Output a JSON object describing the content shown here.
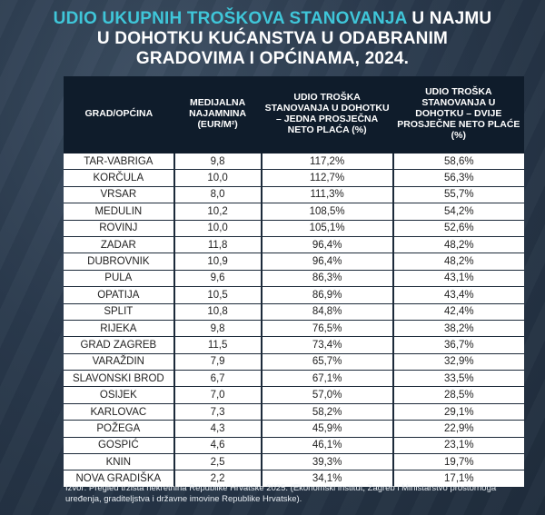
{
  "title": {
    "highlight": "UDIO UKUPNIH TROŠKOVA STANOVANJA",
    "line1_rest": " U NAJMU",
    "line2": "U DOHOTKU KUĆANSTVA U ODABRANIM",
    "line3": "GRADOVIMA I OPĆINAMA, 2024."
  },
  "table": {
    "headers": [
      "GRAD/OPĆINA",
      "MEDIJALNA NAJAMNINA (EUR/M²)",
      "UDIO TROŠKA STANOVANJA U DOHOTKU – JEDNA PROSJEČNA NETO PLAĆA (%)",
      "UDIO TROŠKA STANOVANJA U DOHOTKU – DVIJE PROSJEČNE NETO PLAĆE (%)"
    ],
    "rows": [
      [
        "TAR-VABRIGA",
        "9,8",
        "117,2%",
        "58,6%"
      ],
      [
        "KORČULA",
        "10,0",
        "112,7%",
        "56,3%"
      ],
      [
        "VRSAR",
        "8,0",
        "111,3%",
        "55,7%"
      ],
      [
        "MEDULIN",
        "10,2",
        "108,5%",
        "54,2%"
      ],
      [
        "ROVINJ",
        "10,0",
        "105,1%",
        "52,6%"
      ],
      [
        "ZADAR",
        "11,8",
        "96,4%",
        "48,2%"
      ],
      [
        "DUBROVNIK",
        "10,9",
        "96,4%",
        "48,2%"
      ],
      [
        "PULA",
        "9,6",
        "86,3%",
        "43,1%"
      ],
      [
        "OPATIJA",
        "10,5",
        "86,9%",
        "43,4%"
      ],
      [
        "SPLIT",
        "10,8",
        "84,8%",
        "42,4%"
      ],
      [
        "RIJEKA",
        "9,8",
        "76,5%",
        "38,2%"
      ],
      [
        "GRAD ZAGREB",
        "11,5",
        "73,4%",
        "36,7%"
      ],
      [
        "VARAŽDIN",
        "7,9",
        "65,7%",
        "32,9%"
      ],
      [
        "SLAVONSKI BROD",
        "6,7",
        "67,1%",
        "33,5%"
      ],
      [
        "OSIJEK",
        "7,0",
        "57,0%",
        "28,5%"
      ],
      [
        "KARLOVAC",
        "7,3",
        "58,2%",
        "29,1%"
      ],
      [
        "POŽEGA",
        "4,3",
        "45,9%",
        "22,9%"
      ],
      [
        "GOSPIĆ",
        "4,6",
        "46,1%",
        "23,1%"
      ],
      [
        "KNIN",
        "2,5",
        "39,3%",
        "19,7%"
      ],
      [
        "NOVA GRADIŠKA",
        "2,2",
        "34,1%",
        "17,1%"
      ]
    ]
  },
  "source": "Izvor: Pregled tržišta nekretnina Republike Hrvatske 2025. (Ekonomski institut, Zagreb i Ministarstvo prostornoga uređenja, graditeljstva i državne imovine Republike Hrvatske)."
}
